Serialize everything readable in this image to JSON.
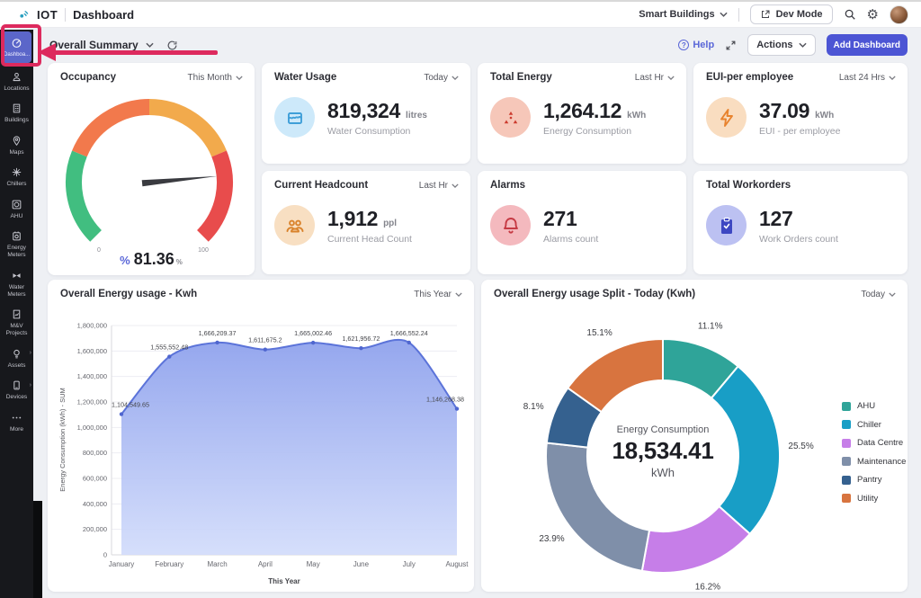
{
  "topbar": {
    "logo": "IOT",
    "page_title": "Dashboard",
    "org": "Smart Buildings",
    "dev_mode_label": "Dev Mode"
  },
  "subheader": {
    "title": "Overall Summary",
    "help_label": "Help",
    "actions_label": "Actions",
    "add_dashboard_label": "Add Dashboard"
  },
  "sidebar": {
    "items": [
      {
        "label": "Dashboa...",
        "icon": "dashboard-icon",
        "active": true
      },
      {
        "label": "Locations",
        "icon": "location-person-icon"
      },
      {
        "label": "Buildings",
        "icon": "building-icon"
      },
      {
        "label": "Maps",
        "icon": "map-pin-icon"
      },
      {
        "label": "Chillers",
        "icon": "chiller-icon"
      },
      {
        "label": "AHU",
        "icon": "ahu-icon"
      },
      {
        "label": "Energy Meters",
        "icon": "energy-meter-icon"
      },
      {
        "label": "Water Meters",
        "icon": "water-meter-icon"
      },
      {
        "label": "M&V Projects",
        "icon": "mv-projects-icon"
      },
      {
        "label": "Assets",
        "icon": "asset-icon",
        "chevron": true
      },
      {
        "label": "Devices",
        "icon": "device-icon",
        "chevron": true
      },
      {
        "label": "More",
        "icon": "more-icon"
      }
    ]
  },
  "occupancy_card": {
    "title": "Occupancy",
    "range": "This Month",
    "value_prefix": "%",
    "value": "81.36",
    "value_suffix": "%"
  },
  "kpi_cards": [
    {
      "id": "water",
      "title": "Water Usage",
      "range": "Today",
      "value": "819,324",
      "unit": "litres",
      "sub": "Water Consumption",
      "icon": "water-drop-icon",
      "icon_bg": "#cde9fa",
      "icon_color": "#3f9fd8"
    },
    {
      "id": "energy",
      "title": "Total Energy",
      "range": "Last Hr",
      "value": "1,264.12",
      "unit": "kWh",
      "sub": "Energy Consumption",
      "icon": "energy-nodes-icon",
      "icon_bg": "#f6c7b9",
      "icon_color": "#cc3b2e"
    },
    {
      "id": "eui",
      "title": "EUI-per employee",
      "range": "Last 24 Hrs",
      "value": "37.09",
      "unit": "kWh",
      "sub": "EUI - per employee",
      "icon": "bolt-icon",
      "icon_bg": "#f9ddc0",
      "icon_color": "#e8832e"
    },
    {
      "id": "head",
      "title": "Current Headcount",
      "range": "Last Hr",
      "value": "1,912",
      "unit": "ppl",
      "sub": "Current Head Count",
      "icon": "people-icon",
      "icon_bg": "#f8dfc2",
      "icon_color": "#d9822b"
    },
    {
      "id": "alarms",
      "title": "Alarms",
      "range": null,
      "value": "271",
      "unit": "",
      "sub": "Alarms count",
      "icon": "bell-icon",
      "icon_bg": "#f4b9be",
      "icon_color": "#c63a44"
    },
    {
      "id": "work",
      "title": "Total Workorders",
      "range": null,
      "value": "127",
      "unit": "",
      "sub": "Work Orders count",
      "icon": "clipboard-icon",
      "icon_bg": "#bcc1f2",
      "icon_color": "#3d47c2"
    }
  ],
  "chart_data": [
    {
      "type": "gauge",
      "title": "Occupancy",
      "value": 81.36,
      "min": 0,
      "max": 100,
      "tick_labels": [
        "0",
        "100"
      ],
      "segments": [
        {
          "to": 25,
          "color": "#41be80"
        },
        {
          "to": 50,
          "color": "#f2794c"
        },
        {
          "to": 75,
          "color": "#f2aa4c"
        },
        {
          "to": 100,
          "color": "#e84c4c"
        }
      ]
    },
    {
      "type": "area",
      "title": "Overall Energy usage - Kwh",
      "range": "This Year",
      "categories": [
        "January",
        "February",
        "March",
        "April",
        "May",
        "June",
        "July",
        "August"
      ],
      "values": [
        1104549.65,
        1555552.48,
        1666209.37,
        1611675.2,
        1665002.46,
        1621956.72,
        1666552.24,
        1146268.38
      ],
      "point_labels": [
        "1,104,549.65",
        "1,555,552.48",
        "1,666,209.37",
        "1,611,675.2",
        "1,665,002.46",
        "1,621,956.72",
        "1,666,552.24",
        "1,146,268.38"
      ],
      "ylabel": "Energy Consumption (kWh) - SUM",
      "xlabel": "This Year",
      "ylim": [
        0,
        1800000
      ],
      "ytick_step": 200000,
      "line_color": "#5b73d9",
      "area_top": "#8fa2ed",
      "area_bottom": "#d2dcfb"
    },
    {
      "type": "donut",
      "title": "Overall Energy usage Split - Today (Kwh)",
      "range": "Today",
      "center_label": "Energy Consumption",
      "center_value": "18,534.41",
      "center_unit": "kWh",
      "slices": [
        {
          "name": "AHU",
          "pct": 11.1,
          "color": "#2fa499"
        },
        {
          "name": "Chiller",
          "pct": 25.5,
          "color": "#189ec6"
        },
        {
          "name": "Data Centre",
          "pct": 16.2,
          "color": "#c67ee8"
        },
        {
          "name": "Maintenance",
          "pct": 23.9,
          "color": "#7f8fa9"
        },
        {
          "name": "Pantry",
          "pct": 8.1,
          "color": "#35618f"
        },
        {
          "name": "Utility",
          "pct": 15.1,
          "color": "#d8743f"
        }
      ]
    }
  ],
  "annotation": {
    "color": "#dd2a5e"
  }
}
